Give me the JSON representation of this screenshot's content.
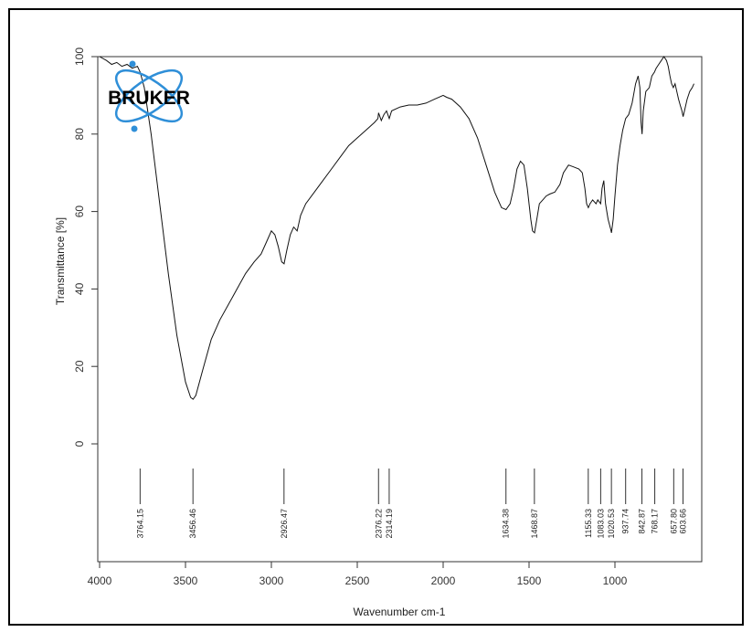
{
  "chart_data": {
    "type": "line",
    "title": "",
    "xlabel": "Wavenumber cm-1",
    "ylabel": "Transmittance [%]",
    "xlim": [
      4000,
      500
    ],
    "ylim": [
      0,
      100
    ],
    "x_ticks": [
      "4000",
      "3500",
      "3000",
      "2500",
      "2000",
      "1500",
      "1000"
    ],
    "x_tick_values": [
      4000,
      3500,
      3000,
      2500,
      2000,
      1500,
      1000
    ],
    "y_ticks": [
      "0",
      "20",
      "40",
      "60",
      "80",
      "100"
    ],
    "y_tick_values": [
      0,
      20,
      40,
      60,
      80,
      100
    ],
    "grid": false,
    "series": [
      {
        "color": "#000000",
        "points": [
          [
            4000,
            100
          ],
          [
            3960,
            99
          ],
          [
            3930,
            98
          ],
          [
            3900,
            98.5
          ],
          [
            3870,
            97.5
          ],
          [
            3840,
            98
          ],
          [
            3810,
            97
          ],
          [
            3780,
            97.5
          ],
          [
            3764,
            96
          ],
          [
            3740,
            92
          ],
          [
            3700,
            80
          ],
          [
            3650,
            62
          ],
          [
            3600,
            44
          ],
          [
            3550,
            28
          ],
          [
            3500,
            16
          ],
          [
            3470,
            12
          ],
          [
            3456,
            11.5
          ],
          [
            3440,
            12.5
          ],
          [
            3400,
            19
          ],
          [
            3350,
            27
          ],
          [
            3300,
            32
          ],
          [
            3250,
            36
          ],
          [
            3200,
            40
          ],
          [
            3150,
            44
          ],
          [
            3100,
            47
          ],
          [
            3060,
            49
          ],
          [
            3030,
            52
          ],
          [
            3000,
            55
          ],
          [
            2980,
            54
          ],
          [
            2960,
            51
          ],
          [
            2940,
            47
          ],
          [
            2926,
            46.5
          ],
          [
            2910,
            50
          ],
          [
            2890,
            54
          ],
          [
            2870,
            56
          ],
          [
            2850,
            55
          ],
          [
            2830,
            59
          ],
          [
            2800,
            62
          ],
          [
            2750,
            65
          ],
          [
            2700,
            68
          ],
          [
            2650,
            71
          ],
          [
            2600,
            74
          ],
          [
            2550,
            77
          ],
          [
            2500,
            79
          ],
          [
            2450,
            81
          ],
          [
            2400,
            83
          ],
          [
            2380,
            84
          ],
          [
            2376,
            85.5
          ],
          [
            2360,
            83.5
          ],
          [
            2345,
            85
          ],
          [
            2330,
            86
          ],
          [
            2314,
            84
          ],
          [
            2300,
            86
          ],
          [
            2250,
            87
          ],
          [
            2200,
            87.5
          ],
          [
            2150,
            87.5
          ],
          [
            2100,
            88
          ],
          [
            2050,
            89
          ],
          [
            2000,
            90
          ],
          [
            1980,
            89.5
          ],
          [
            1950,
            89
          ],
          [
            1900,
            87
          ],
          [
            1850,
            84
          ],
          [
            1800,
            79
          ],
          [
            1750,
            72
          ],
          [
            1700,
            65
          ],
          [
            1660,
            61
          ],
          [
            1634,
            60.5
          ],
          [
            1610,
            62
          ],
          [
            1590,
            66
          ],
          [
            1570,
            71
          ],
          [
            1550,
            73
          ],
          [
            1530,
            72
          ],
          [
            1510,
            66
          ],
          [
            1490,
            58
          ],
          [
            1480,
            55
          ],
          [
            1468,
            54.5
          ],
          [
            1455,
            58
          ],
          [
            1440,
            62
          ],
          [
            1420,
            63
          ],
          [
            1400,
            64
          ],
          [
            1380,
            64.5
          ],
          [
            1350,
            65
          ],
          [
            1320,
            67
          ],
          [
            1300,
            70
          ],
          [
            1270,
            72
          ],
          [
            1240,
            71.5
          ],
          [
            1210,
            71
          ],
          [
            1190,
            70
          ],
          [
            1175,
            66
          ],
          [
            1165,
            62
          ],
          [
            1155,
            61
          ],
          [
            1145,
            62
          ],
          [
            1130,
            63
          ],
          [
            1110,
            62
          ],
          [
            1100,
            63
          ],
          [
            1083,
            62
          ],
          [
            1075,
            66
          ],
          [
            1065,
            68
          ],
          [
            1055,
            62
          ],
          [
            1040,
            58
          ],
          [
            1025,
            55.5
          ],
          [
            1020,
            54.5
          ],
          [
            1010,
            58
          ],
          [
            1000,
            64
          ],
          [
            985,
            72
          ],
          [
            970,
            77
          ],
          [
            955,
            81
          ],
          [
            938,
            84
          ],
          [
            920,
            85
          ],
          [
            900,
            88
          ],
          [
            880,
            93
          ],
          [
            865,
            95
          ],
          [
            855,
            92
          ],
          [
            848,
            83
          ],
          [
            842,
            80
          ],
          [
            835,
            86
          ],
          [
            820,
            91
          ],
          [
            800,
            92
          ],
          [
            785,
            95
          ],
          [
            770,
            96
          ],
          [
            760,
            97
          ],
          [
            745,
            98
          ],
          [
            730,
            99
          ],
          [
            715,
            100
          ],
          [
            700,
            99
          ],
          [
            690,
            97.5
          ],
          [
            680,
            95
          ],
          [
            670,
            93
          ],
          [
            660,
            92
          ],
          [
            650,
            93
          ],
          [
            640,
            91
          ],
          [
            630,
            89
          ],
          [
            620,
            87.5
          ],
          [
            610,
            86
          ],
          [
            603,
            84.5
          ],
          [
            595,
            86
          ],
          [
            580,
            89
          ],
          [
            565,
            91
          ],
          [
            550,
            92
          ],
          [
            540,
            93
          ]
        ]
      }
    ],
    "peaks": [
      {
        "x": 3764.15,
        "label": "3764.15"
      },
      {
        "x": 3456.46,
        "label": "3456.46"
      },
      {
        "x": 2926.47,
        "label": "2926.47"
      },
      {
        "x": 2376.22,
        "label": "2376.22"
      },
      {
        "x": 2314.19,
        "label": "2314.19"
      },
      {
        "x": 1634.38,
        "label": "1634.38"
      },
      {
        "x": 1468.87,
        "label": "1468.87"
      },
      {
        "x": 1155.33,
        "label": "1155.33"
      },
      {
        "x": 1083.03,
        "label": "1083.03"
      },
      {
        "x": 1020.53,
        "label": "1020.53"
      },
      {
        "x": 937.74,
        "label": "937.74"
      },
      {
        "x": 842.87,
        "label": "842.87"
      },
      {
        "x": 768.17,
        "label": "768.17"
      },
      {
        "x": 657.8,
        "label": "657.80"
      },
      {
        "x": 603.66,
        "label": "603.66"
      }
    ]
  },
  "logo": {
    "text": "BRUKER",
    "colors": {
      "orbit": "#2f8fd8",
      "text": "#000000"
    }
  }
}
